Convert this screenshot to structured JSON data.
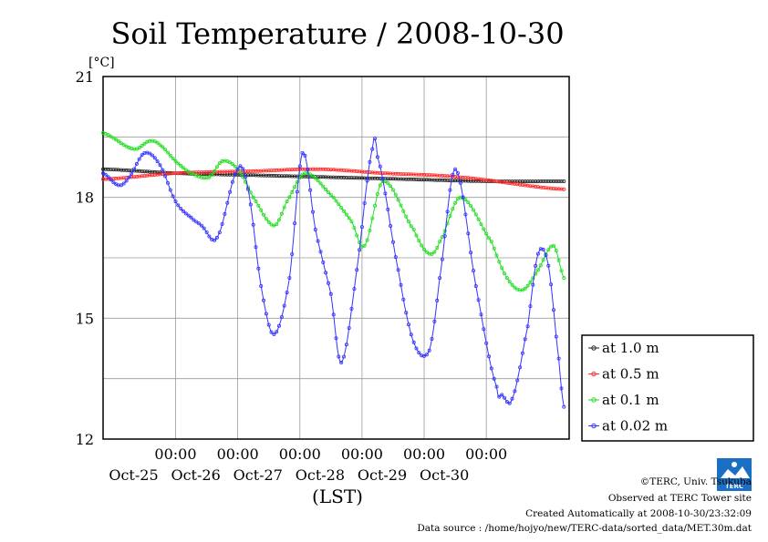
{
  "chart_data": {
    "type": "line",
    "title": "Soil Temperature / 2008-10-30",
    "unit_label": "[°C]",
    "xlabel": "(LST)",
    "ylim": [
      12,
      21
    ],
    "yticks": [
      12,
      15,
      18,
      21
    ],
    "x_range_hours": [
      -28,
      152
    ],
    "x_ticks": [
      {
        "time": "00:00",
        "date": "Oct-25"
      },
      {
        "time": "00:00",
        "date": "Oct-26"
      },
      {
        "time": "00:00",
        "date": "Oct-27"
      },
      {
        "time": "00:00",
        "date": "Oct-28"
      },
      {
        "time": "00:00",
        "date": "Oct-29"
      },
      {
        "time": "00:00",
        "date": "Oct-30"
      }
    ],
    "grid": true,
    "legend_position": "right",
    "series": [
      {
        "name": "at 1.0 m",
        "color": "#222222",
        "x": [
          -28,
          0,
          30,
          60,
          90,
          120,
          150
        ],
        "y": [
          18.7,
          18.6,
          18.55,
          18.5,
          18.45,
          18.4,
          18.4
        ]
      },
      {
        "name": "at 0.5 m",
        "color": "#ff2a2a",
        "x": [
          -28,
          0,
          30,
          55,
          80,
          110,
          150
        ],
        "y": [
          18.45,
          18.6,
          18.65,
          18.7,
          18.6,
          18.5,
          18.2
        ]
      },
      {
        "name": "at 0.1 m",
        "color": "#22dd22",
        "x": [
          -28,
          -16,
          -10,
          -6,
          0,
          6,
          13,
          18,
          24,
          30,
          38,
          43,
          50,
          61,
          68,
          73,
          80,
          92,
          98,
          102,
          110,
          122,
          128,
          134,
          140,
          146,
          150
        ],
        "y": [
          19.6,
          19.2,
          19.4,
          19.3,
          18.9,
          18.6,
          18.5,
          18.9,
          18.7,
          18.0,
          17.3,
          17.9,
          18.6,
          18.0,
          17.4,
          16.8,
          18.4,
          17.2,
          16.6,
          16.9,
          18.0,
          16.9,
          16.0,
          15.7,
          16.2,
          16.8,
          16.0
        ]
      },
      {
        "name": "at 0.02 m",
        "color": "#3333ff",
        "x": [
          -28,
          -22,
          -18,
          -12,
          -6,
          0,
          6,
          10,
          16,
          24,
          28,
          33,
          38,
          44,
          49,
          54,
          60,
          64,
          70,
          76,
          78,
          86,
          92,
          98,
          102,
          108,
          116,
          124,
          126,
          130,
          136,
          140,
          144,
          148,
          150
        ],
        "y": [
          18.6,
          18.3,
          18.5,
          19.1,
          18.8,
          17.9,
          17.5,
          17.3,
          17.0,
          18.7,
          18.2,
          15.8,
          14.6,
          16.0,
          19.1,
          17.2,
          15.6,
          13.9,
          16.2,
          19.2,
          19.0,
          16.2,
          14.4,
          14.2,
          16.0,
          18.7,
          15.8,
          13.3,
          13.1,
          13.0,
          14.8,
          16.6,
          16.3,
          14.0,
          12.8
        ]
      }
    ]
  },
  "footer": {
    "copyright": "©TERC, Univ. Tsukuba",
    "observed": "Observed at TERC Tower site",
    "created": "Created Automatically at 2008-10-30/23:32:09",
    "source": "Data source : /home/hojyo/new/TERC-data/sorted_data/MET.30m.dat"
  },
  "logo": {
    "text": "TERC",
    "color": "#1a6fc4"
  }
}
